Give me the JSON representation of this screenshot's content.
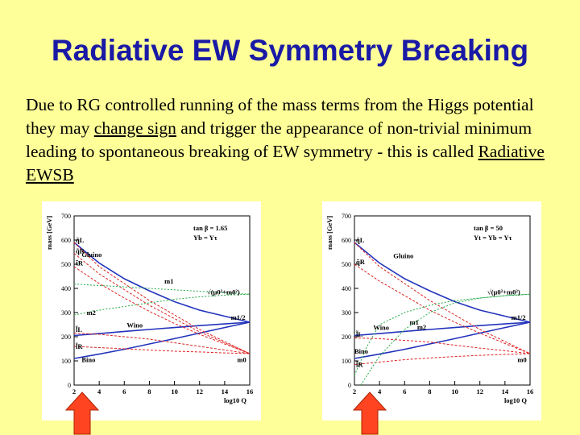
{
  "title": "Radiative EW Symmetry Breaking",
  "text": {
    "p1": "Due to RG controlled running  of the mass terms from the Higgs potential they may ",
    "u1": "change sign",
    "p2": " and trigger the appearance of non-trivial minimum leading to spontaneous breaking of EW symmetry  -  this is called  ",
    "u2": "Radiative EWSB"
  },
  "colors": {
    "background": "#ffff99",
    "title": "#1a1aa6",
    "arrow": "#ff4422"
  },
  "chart_data": [
    {
      "type": "line",
      "ylabel": "mass [GeV]",
      "xlabel": "log10 Q",
      "xlim": [
        2,
        16
      ],
      "ylim": [
        0,
        700
      ],
      "xticks": [
        "2",
        "4",
        "6",
        "8",
        "10",
        "12",
        "14",
        "16"
      ],
      "yticks": [
        "0",
        "100",
        "200",
        "300",
        "400",
        "500",
        "600",
        "700"
      ],
      "params": [
        "tan β = 1.65",
        "Yb = Yτ"
      ],
      "series": [
        {
          "name": "Gluino",
          "color": "#2233bb",
          "x": [
            2,
            4,
            6,
            8,
            10,
            12,
            14,
            16
          ],
          "y": [
            590,
            505,
            440,
            390,
            345,
            310,
            285,
            260
          ]
        },
        {
          "name": "Wino",
          "color": "#2233bb",
          "x": [
            2,
            4,
            6,
            8,
            10,
            12,
            14,
            16
          ],
          "y": [
            205,
            213,
            222,
            230,
            238,
            246,
            253,
            260
          ]
        },
        {
          "name": "Bino",
          "color": "#2233bb",
          "x": [
            2,
            4,
            6,
            8,
            10,
            12,
            14,
            16
          ],
          "y": [
            110,
            128,
            148,
            170,
            192,
            215,
            238,
            260
          ]
        },
        {
          "name": "q̃L",
          "color": "#dd2222",
          "x": [
            2,
            4,
            6,
            8,
            10,
            12,
            14,
            16
          ],
          "y": [
            590,
            490,
            420,
            350,
            290,
            230,
            180,
            130
          ]
        },
        {
          "name": "q̃R",
          "color": "#dd2222",
          "x": [
            2,
            4,
            6,
            8,
            10,
            12,
            14,
            16
          ],
          "y": [
            545,
            460,
            395,
            330,
            275,
            220,
            175,
            130
          ]
        },
        {
          "name": "t̃R",
          "color": "#dd2222",
          "x": [
            2,
            4,
            6,
            8,
            10,
            12,
            14,
            16
          ],
          "y": [
            490,
            420,
            360,
            305,
            255,
            210,
            170,
            130
          ]
        },
        {
          "name": "l̃L",
          "color": "#dd2222",
          "x": [
            2,
            4,
            6,
            8,
            10,
            12,
            14,
            16
          ],
          "y": [
            215,
            210,
            200,
            190,
            175,
            160,
            145,
            130
          ]
        },
        {
          "name": "l̃R",
          "color": "#dd2222",
          "x": [
            2,
            4,
            6,
            8,
            10,
            12,
            14,
            16
          ],
          "y": [
            160,
            155,
            150,
            145,
            140,
            137,
            133,
            130
          ]
        },
        {
          "name": "m1",
          "color": "#22aa44",
          "x": [
            2,
            4,
            6,
            8,
            10,
            12,
            14,
            16
          ],
          "y": [
            418,
            412,
            406,
            400,
            394,
            388,
            382,
            376
          ]
        },
        {
          "name": "m2",
          "color": "#22aa44",
          "x": [
            2,
            4,
            6,
            8,
            10,
            12,
            14,
            16
          ],
          "y": [
            290,
            310,
            325,
            340,
            355,
            365,
            372,
            376
          ]
        }
      ],
      "annotations": [
        "Gluino",
        "Wino",
        "Bino",
        "m1",
        "m2",
        "m1/2",
        "m0",
        "√(μ0²+m0²)",
        "q̃L",
        "q̃R",
        "t̃R",
        "l̃L",
        "l̃R"
      ]
    },
    {
      "type": "line",
      "ylabel": "mass [GeV]",
      "xlabel": "log10 Q",
      "xlim": [
        2,
        16
      ],
      "ylim": [
        0,
        700
      ],
      "xticks": [
        "2",
        "4",
        "6",
        "8",
        "10",
        "12",
        "14",
        "16"
      ],
      "yticks": [
        "0",
        "100",
        "200",
        "300",
        "400",
        "500",
        "600",
        "700"
      ],
      "params": [
        "tan β = 50",
        "Yt = Yb = Yτ"
      ],
      "series": [
        {
          "name": "Gluino",
          "color": "#2233bb",
          "x": [
            2,
            4,
            6,
            8,
            10,
            12,
            14,
            16
          ],
          "y": [
            590,
            505,
            440,
            390,
            345,
            310,
            285,
            260
          ]
        },
        {
          "name": "Wino",
          "color": "#2233bb",
          "x": [
            2,
            4,
            6,
            8,
            10,
            12,
            14,
            16
          ],
          "y": [
            205,
            213,
            222,
            230,
            238,
            246,
            253,
            260
          ]
        },
        {
          "name": "Bino",
          "color": "#2233bb",
          "x": [
            2,
            4,
            6,
            8,
            10,
            12,
            14,
            16
          ],
          "y": [
            110,
            128,
            148,
            170,
            192,
            215,
            238,
            260
          ]
        },
        {
          "name": "q̃L",
          "color": "#dd2222",
          "x": [
            2,
            4,
            6,
            8,
            10,
            12,
            14,
            16
          ],
          "y": [
            590,
            490,
            420,
            350,
            290,
            230,
            180,
            130
          ]
        },
        {
          "name": "q̃R",
          "color": "#dd2222",
          "x": [
            2,
            4,
            6,
            8,
            10,
            12,
            14,
            16
          ],
          "y": [
            500,
            430,
            370,
            310,
            260,
            215,
            172,
            130
          ]
        },
        {
          "name": "l̃L",
          "color": "#dd2222",
          "x": [
            2,
            4,
            6,
            8,
            10,
            12,
            14,
            16
          ],
          "y": [
            195,
            192,
            185,
            178,
            165,
            153,
            142,
            130
          ]
        },
        {
          "name": "l̃R",
          "color": "#dd2222",
          "x": [
            2,
            4,
            6,
            8,
            10,
            12,
            14,
            16
          ],
          "y": [
            85,
            95,
            105,
            112,
            118,
            123,
            127,
            130
          ]
        },
        {
          "name": "m1",
          "color": "#22aa44",
          "x": [
            2,
            3,
            4,
            6,
            8,
            10,
            12,
            14,
            16
          ],
          "y": [
            40,
            160,
            250,
            300,
            330,
            350,
            360,
            370,
            376
          ]
        },
        {
          "name": "m2",
          "color": "#22aa44",
          "x": [
            2.5,
            4,
            6,
            8,
            10,
            12,
            14,
            16
          ],
          "y": [
            0,
            120,
            230,
            300,
            340,
            360,
            370,
            376
          ]
        }
      ],
      "annotations": [
        "Gluino",
        "Wino",
        "Bino",
        "m1",
        "m2",
        "m1/2",
        "m0",
        "√(μ0²+m0²)",
        "q̃L",
        "q̃R",
        "l̃L",
        "l̃R"
      ]
    }
  ]
}
